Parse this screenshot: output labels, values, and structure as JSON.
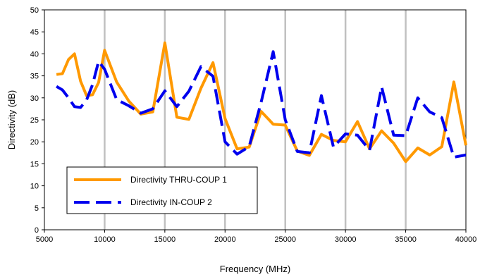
{
  "chart_data": {
    "type": "line",
    "title": "",
    "xlabel": "Frequency (MHz)",
    "ylabel": "Directivity (dB)",
    "xlim": [
      5000,
      40000
    ],
    "ylim": [
      0,
      50
    ],
    "x_ticks": [
      "5000",
      "10000",
      "15000",
      "20000",
      "25000",
      "30000",
      "35000",
      "40000"
    ],
    "y_ticks": [
      "0",
      "5",
      "10",
      "15",
      "20",
      "25",
      "30",
      "35",
      "40",
      "45",
      "50"
    ],
    "grid": "vertical",
    "legend_position": "bottom-left",
    "series": [
      {
        "name": "Directivity THRU-COUP 1",
        "color": "#FF9900",
        "style": "solid",
        "x": [
          6000,
          6500,
          7000,
          7500,
          8000,
          8500,
          9000,
          9500,
          10000,
          11000,
          12000,
          13000,
          14000,
          15000,
          16000,
          17000,
          18000,
          19000,
          20000,
          21000,
          22000,
          23000,
          24000,
          25000,
          26000,
          27000,
          28000,
          29000,
          30000,
          31000,
          32000,
          33000,
          34000,
          35000,
          36000,
          37000,
          38000,
          39000,
          40000
        ],
        "values": [
          35.3,
          35.5,
          38.7,
          40.0,
          33.8,
          30.5,
          30.7,
          33.5,
          40.8,
          33.6,
          29.3,
          26.3,
          26.8,
          42.5,
          25.6,
          25.1,
          32.2,
          38.0,
          25.3,
          18.4,
          18.8,
          26.9,
          24.0,
          23.8,
          17.9,
          16.9,
          21.7,
          20.3,
          20.0,
          24.6,
          18.4,
          22.5,
          19.7,
          15.5,
          18.6,
          17.0,
          18.9,
          33.6,
          19.2
        ]
      },
      {
        "name": "Directivity IN-COUP 2",
        "color": "#0000EE",
        "style": "dashed",
        "x": [
          6000,
          6500,
          7000,
          7500,
          8000,
          8500,
          9000,
          9500,
          10000,
          11000,
          12000,
          13000,
          14000,
          15000,
          16000,
          17000,
          18000,
          19000,
          20000,
          21000,
          22000,
          23000,
          24000,
          25000,
          26000,
          27000,
          28000,
          29000,
          30000,
          31000,
          32000,
          33000,
          34000,
          35000,
          36000,
          37000,
          38000,
          39000,
          40000
        ],
        "values": [
          32.6,
          31.8,
          30.0,
          28.0,
          27.8,
          29.5,
          33.0,
          38.3,
          36.5,
          29.6,
          28.2,
          26.5,
          27.5,
          31.6,
          28.0,
          31.5,
          37.1,
          34.9,
          20.0,
          17.2,
          18.9,
          29.0,
          40.5,
          25.0,
          17.8,
          17.5,
          30.5,
          18.8,
          21.8,
          21.5,
          18.1,
          32.5,
          21.5,
          21.4,
          30.0,
          26.8,
          25.5,
          16.5,
          17.0
        ]
      }
    ]
  }
}
